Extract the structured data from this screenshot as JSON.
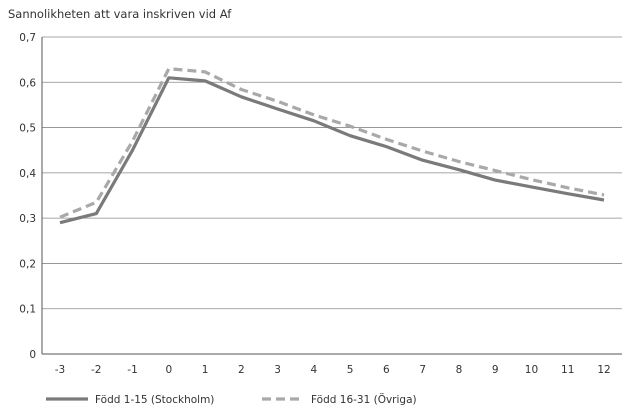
{
  "chart_data": {
    "type": "line",
    "title": "Sannolikheten att vara inskriven vid Af",
    "xlabel": "",
    "ylabel": "",
    "x": [
      -3,
      -2,
      -1,
      0,
      1,
      2,
      3,
      4,
      5,
      6,
      7,
      8,
      9,
      10,
      11,
      12
    ],
    "y_ticks": [
      "0",
      "0,1",
      "0,2",
      "0,3",
      "0,4",
      "0,5",
      "0,6",
      "0,7"
    ],
    "ylim": [
      0,
      0.7
    ],
    "grid": true,
    "legend_position": "bottom",
    "series": [
      {
        "name": "Född 1-15 (Stockholm)",
        "style": "solid",
        "color": "#7a7a7a",
        "values": [
          0.29,
          0.31,
          0.45,
          0.61,
          0.603,
          0.568,
          0.541,
          0.515,
          0.482,
          0.458,
          0.428,
          0.407,
          0.384,
          0.369,
          0.354,
          0.34
        ]
      },
      {
        "name": "Född 16-31 (Övriga)",
        "style": "dashed",
        "color": "#a9a9a9",
        "values": [
          0.302,
          0.335,
          0.47,
          0.63,
          0.623,
          0.584,
          0.558,
          0.528,
          0.503,
          0.474,
          0.448,
          0.425,
          0.405,
          0.385,
          0.367,
          0.351
        ]
      }
    ]
  }
}
